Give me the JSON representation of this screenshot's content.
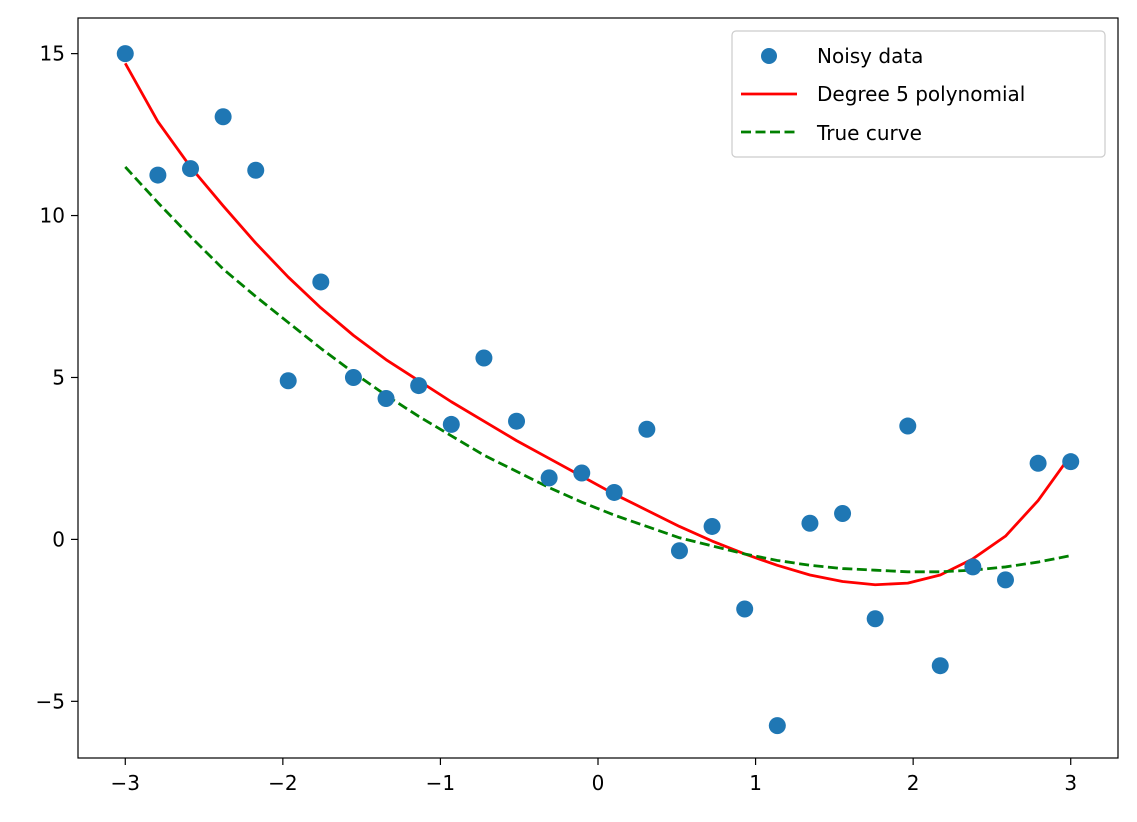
{
  "chart_data": {
    "type": "scatter",
    "title": "",
    "xlabel": "",
    "ylabel": "",
    "xlim": [
      -3.3,
      3.3
    ],
    "ylim": [
      -6.75,
      16.1
    ],
    "xticks": [
      -3,
      -2,
      -1,
      0,
      1,
      2,
      3
    ],
    "xtick_labels": [
      "−3",
      "−2",
      "−1",
      "0",
      "1",
      "2",
      "3"
    ],
    "yticks": [
      -5,
      0,
      5,
      10,
      15
    ],
    "ytick_labels": [
      "−5",
      "0",
      "5",
      "10",
      "15"
    ],
    "grid": false,
    "legend_position": "top-right",
    "series": [
      {
        "name": "Noisy data",
        "kind": "scatter",
        "color": "#1f77b4",
        "x": [
          -3.0,
          -2.793,
          -2.586,
          -2.379,
          -2.172,
          -1.966,
          -1.759,
          -1.552,
          -1.345,
          -1.138,
          -0.931,
          -0.724,
          -0.517,
          -0.31,
          -0.103,
          0.103,
          0.31,
          0.517,
          0.724,
          0.931,
          1.138,
          1.345,
          1.552,
          1.759,
          1.966,
          2.172,
          2.379,
          2.586,
          2.793,
          3.0
        ],
        "y": [
          15.0,
          11.25,
          11.45,
          13.05,
          11.4,
          4.9,
          7.95,
          5.0,
          4.35,
          4.75,
          3.55,
          5.6,
          3.65,
          1.9,
          2.05,
          1.45,
          3.4,
          -0.35,
          0.4,
          -2.15,
          -5.75,
          0.5,
          0.8,
          -2.45,
          3.5,
          -3.9,
          -0.85,
          -1.25,
          2.35,
          2.4
        ]
      },
      {
        "name": "Degree 5 polynomial",
        "kind": "line",
        "color": "#ff0000",
        "dash": "solid",
        "x": [
          -3.0,
          -2.793,
          -2.586,
          -2.379,
          -2.172,
          -1.966,
          -1.759,
          -1.552,
          -1.345,
          -1.138,
          -0.931,
          -0.724,
          -0.517,
          -0.31,
          -0.103,
          0.103,
          0.31,
          0.517,
          0.724,
          0.931,
          1.138,
          1.345,
          1.552,
          1.759,
          1.966,
          2.172,
          2.379,
          2.586,
          2.793,
          3.0
        ],
        "y": [
          14.7,
          12.9,
          11.5,
          10.3,
          9.15,
          8.1,
          7.15,
          6.3,
          5.55,
          4.9,
          4.25,
          3.65,
          3.05,
          2.5,
          1.95,
          1.4,
          0.9,
          0.4,
          -0.05,
          -0.45,
          -0.8,
          -1.1,
          -1.3,
          -1.4,
          -1.35,
          -1.1,
          -0.6,
          0.1,
          1.2,
          2.6
        ]
      },
      {
        "name": "True curve",
        "kind": "line",
        "color": "#008000",
        "dash": "dashed",
        "x": [
          -3.0,
          -2.793,
          -2.586,
          -2.379,
          -2.172,
          -1.966,
          -1.759,
          -1.552,
          -1.345,
          -1.138,
          -0.931,
          -0.724,
          -0.517,
          -0.31,
          -0.103,
          0.103,
          0.31,
          0.517,
          0.724,
          0.931,
          1.138,
          1.345,
          1.552,
          1.759,
          1.966,
          2.172,
          2.379,
          2.586,
          2.793,
          3.0
        ],
        "y": [
          11.5,
          10.4,
          9.35,
          8.35,
          7.5,
          6.7,
          5.9,
          5.15,
          4.45,
          3.8,
          3.2,
          2.6,
          2.1,
          1.6,
          1.15,
          0.75,
          0.4,
          0.05,
          -0.2,
          -0.45,
          -0.65,
          -0.8,
          -0.9,
          -0.95,
          -1.0,
          -1.0,
          -0.95,
          -0.85,
          -0.7,
          -0.5
        ]
      }
    ]
  }
}
